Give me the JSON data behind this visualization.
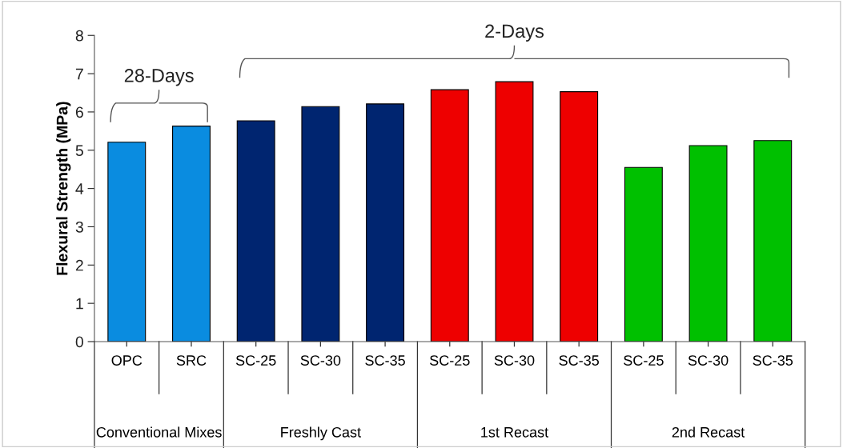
{
  "chart_data": {
    "type": "bar",
    "ylabel": "Flexural Strength (MPa)",
    "categories": [
      "OPC",
      "SRC",
      "SC-25",
      "SC-30",
      "SC-35",
      "SC-25",
      "SC-30",
      "SC-35",
      "SC-25",
      "SC-30",
      "SC-35"
    ],
    "values": [
      5.21,
      5.63,
      5.77,
      6.14,
      6.21,
      6.58,
      6.79,
      6.53,
      4.55,
      5.12,
      5.25
    ],
    "colors": [
      "#0a8ce0",
      "#0a8ce0",
      "#002570",
      "#002570",
      "#002570",
      "#ee0000",
      "#ee0000",
      "#ee0000",
      "#00c000",
      "#00c000",
      "#00c000"
    ],
    "ylim": [
      0,
      8
    ],
    "yticks": [
      0,
      1,
      2,
      3,
      4,
      5,
      6,
      7,
      8
    ],
    "grid": false,
    "legend": false,
    "annotations": [
      "28-Days",
      "2-Days",
      "Conventional Mixes",
      "Freshly Cast",
      "1st Recast",
      "2nd Recast"
    ]
  }
}
